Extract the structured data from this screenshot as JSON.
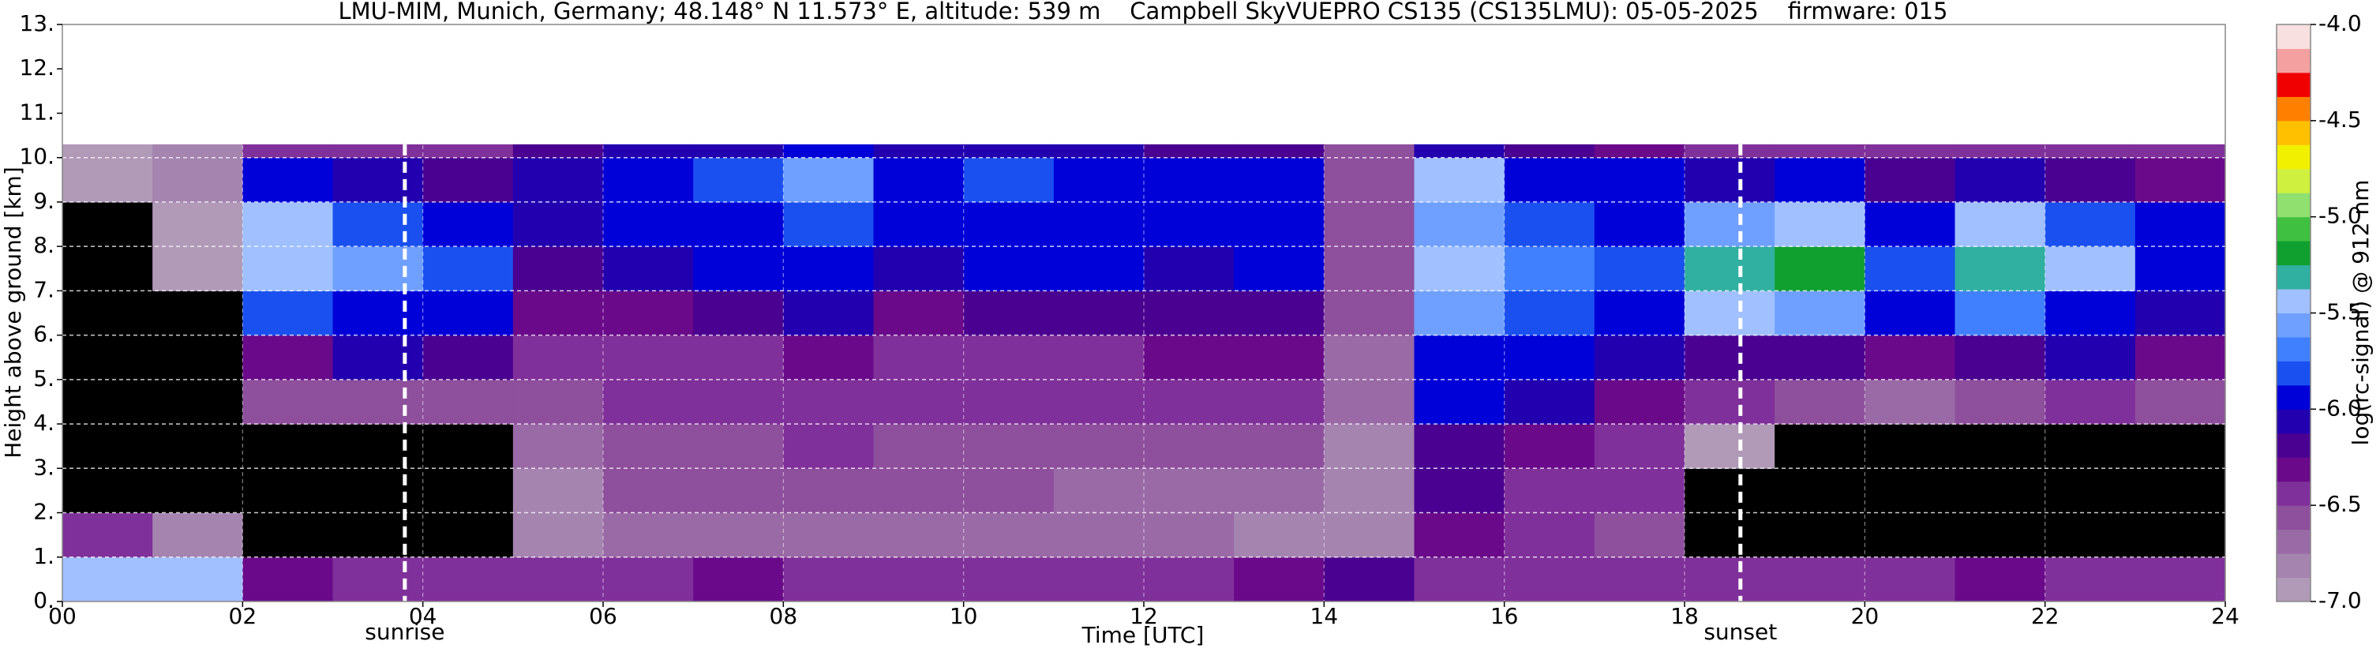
{
  "chart_data": {
    "type": "heatmap",
    "title": "LMU-MIM, Munich, Germany; 48.148° N 11.573° E, altitude: 539 m    Campbell SkyVUEPRO CS135 (CS135LMU): 05-05-2025    firmware: 015",
    "xlabel": "Time [UTC]",
    "ylabel": "Height above ground [km]",
    "colorbar_label": "log(rc-signal) @ 912 nm",
    "xlim": [
      0,
      24
    ],
    "ylim": [
      0,
      13
    ],
    "xticks": [
      {
        "value": 0,
        "label": "00"
      },
      {
        "value": 2,
        "label": "02"
      },
      {
        "value": 4,
        "label": "04"
      },
      {
        "value": 6,
        "label": "06"
      },
      {
        "value": 8,
        "label": "08"
      },
      10,
      12,
      14,
      16,
      18,
      20,
      22,
      24
    ],
    "yticks": [
      {
        "value": 0,
        "label": "0."
      },
      {
        "value": 1,
        "label": "1."
      },
      {
        "value": 2,
        "label": "2."
      },
      {
        "value": 3,
        "label": "3."
      },
      {
        "value": 4,
        "label": "4."
      },
      {
        "value": 5,
        "label": "5."
      },
      {
        "value": 6,
        "label": "6."
      },
      {
        "value": 7,
        "label": "7."
      },
      {
        "value": 8,
        "label": "8."
      },
      {
        "value": 9,
        "label": "9."
      },
      {
        "value": 10,
        "label": "10."
      },
      {
        "value": 11,
        "label": "11."
      },
      {
        "value": 12,
        "label": "12."
      },
      {
        "value": 13,
        "label": "13."
      }
    ],
    "grid": true,
    "clim": [
      -7,
      -4
    ],
    "cticks": [
      {
        "value": -7,
        "label": "-7.0"
      },
      -6.5,
      {
        "value": -6,
        "label": "-6.0"
      },
      -5.5,
      {
        "value": -5,
        "label": "-5.0"
      },
      -4.5,
      {
        "value": -4,
        "label": "-4.0"
      }
    ],
    "colors": [
      "#b09ab8",
      "#a584b0",
      "#9a6aa6",
      "#8e4f9c",
      "#80309a",
      "#6a0a8a",
      "#4a0090",
      "#2200b0",
      "#0000d8",
      "#1a50f0",
      "#4080ff",
      "#70a0ff",
      "#a0c0ff",
      "#30b0a0",
      "#10a030",
      "#40c040",
      "#90e070",
      "#d0f040",
      "#f0f000",
      "#ffc000",
      "#ff8000",
      "#f00000",
      "#f4a0a0",
      "#f8e0e0"
    ],
    "under_color": "#000000",
    "x_edges": [
      0,
      1,
      2,
      3,
      4,
      5,
      6,
      7,
      8,
      9,
      10,
      11,
      12,
      13,
      14,
      15,
      16,
      17,
      18,
      19,
      20,
      21,
      22,
      23,
      24
    ],
    "y_edges": [
      0,
      1,
      2,
      3,
      4,
      5,
      6,
      7,
      8,
      9,
      10,
      10.3
    ],
    "z": [
      [
        -5.5,
        -5.5,
        -6.3,
        -6.5,
        -6.5,
        -6.5,
        -6.4,
        -6.3,
        -6.4,
        -6.5,
        -6.4,
        -6.5,
        -6.5,
        -6.3,
        -6.2,
        -6.4,
        -6.5,
        -6.5,
        -6.5,
        -6.5,
        -6.5,
        -6.3,
        -6.5,
        -6.5
      ],
      [
        -6.5,
        -6.8,
        -7.5,
        -7.5,
        -7.5,
        -6.8,
        -6.7,
        -6.7,
        -6.7,
        -6.7,
        -6.7,
        -6.7,
        -6.7,
        -6.8,
        -6.8,
        -6.3,
        -6.5,
        -6.6,
        -7.5,
        -7.5,
        -7.5,
        -7.3,
        -7.3,
        -7.5
      ],
      [
        -7.5,
        -7.5,
        -7.5,
        -7.5,
        -7.5,
        -6.8,
        -6.6,
        -6.6,
        -6.6,
        -6.6,
        -6.6,
        -6.7,
        -6.7,
        -6.7,
        -6.8,
        -6.2,
        -6.4,
        -6.5,
        -7.5,
        -7.5,
        -7.5,
        -7.5,
        -7.5,
        -7.5
      ],
      [
        -7.5,
        -7.5,
        -7.3,
        -7.3,
        -7.3,
        -6.7,
        -6.6,
        -6.6,
        -6.5,
        -6.6,
        -6.6,
        -6.6,
        -6.6,
        -6.6,
        -6.8,
        -6.2,
        -6.3,
        -6.4,
        -7.0,
        -7.5,
        -7.5,
        -7.5,
        -7.5,
        -7.5
      ],
      [
        -7.5,
        -7.5,
        -6.6,
        -6.6,
        -6.6,
        -6.6,
        -6.5,
        -6.5,
        -6.4,
        -6.5,
        -6.5,
        -6.5,
        -6.5,
        -6.4,
        -6.7,
        -6.0,
        -6.1,
        -6.3,
        -6.5,
        -6.6,
        -6.7,
        -6.6,
        -6.5,
        -6.6
      ],
      [
        -7.5,
        -7.3,
        -6.3,
        -6.1,
        -6.2,
        -6.5,
        -6.4,
        -6.4,
        -6.3,
        -6.4,
        -6.4,
        -6.4,
        -6.3,
        -6.3,
        -6.7,
        -5.9,
        -6.0,
        -6.1,
        -6.2,
        -6.2,
        -6.3,
        -6.2,
        -6.1,
        -6.3
      ],
      [
        -7.5,
        -7.2,
        -5.8,
        -5.9,
        -6.0,
        -6.3,
        -6.3,
        -6.2,
        -6.1,
        -6.3,
        -6.2,
        -6.2,
        -6.2,
        -6.2,
        -6.6,
        -5.6,
        -5.8,
        -5.9,
        -5.5,
        -5.6,
        -6.0,
        -5.7,
        -5.9,
        -6.1
      ],
      [
        -7.3,
        -7.0,
        -5.4,
        -5.6,
        -5.8,
        -6.2,
        -6.1,
        -6.0,
        -5.9,
        -6.1,
        -6.0,
        -6.0,
        -6.1,
        -6.0,
        -6.6,
        -5.4,
        -5.7,
        -5.8,
        -5.3,
        -5.2,
        -5.8,
        -5.3,
        -5.5,
        -5.9
      ],
      [
        -7.2,
        -6.9,
        -5.5,
        -5.8,
        -6.0,
        -6.1,
        -6.0,
        -5.9,
        -5.8,
        -6.0,
        -5.9,
        -5.9,
        -6.0,
        -5.9,
        -6.6,
        -5.6,
        -5.8,
        -5.9,
        -5.6,
        -5.4,
        -6.0,
        -5.5,
        -5.8,
        -6.0
      ],
      [
        -7.0,
        -6.8,
        -6.0,
        -6.1,
        -6.2,
        -6.1,
        -5.9,
        -5.8,
        -5.6,
        -5.9,
        -5.8,
        -5.9,
        -6.0,
        -6.0,
        -6.6,
        -5.5,
        -5.9,
        -6.0,
        -6.1,
        -6.0,
        -6.2,
        -6.1,
        -6.2,
        -6.3
      ],
      [
        -6.9,
        -6.8,
        -6.4,
        -6.4,
        -6.4,
        -6.2,
        -6.1,
        -6.1,
        -6.0,
        -6.1,
        -6.1,
        -6.1,
        -6.2,
        -6.2,
        -6.6,
        -6.1,
        -6.2,
        -6.3,
        -6.4,
        -6.4,
        -6.4,
        -6.4,
        -6.4,
        -6.4
      ]
    ],
    "annotations": [
      {
        "text": "sunrise",
        "x": 3.8
      },
      {
        "text": "sunset",
        "x": 18.62
      }
    ]
  }
}
